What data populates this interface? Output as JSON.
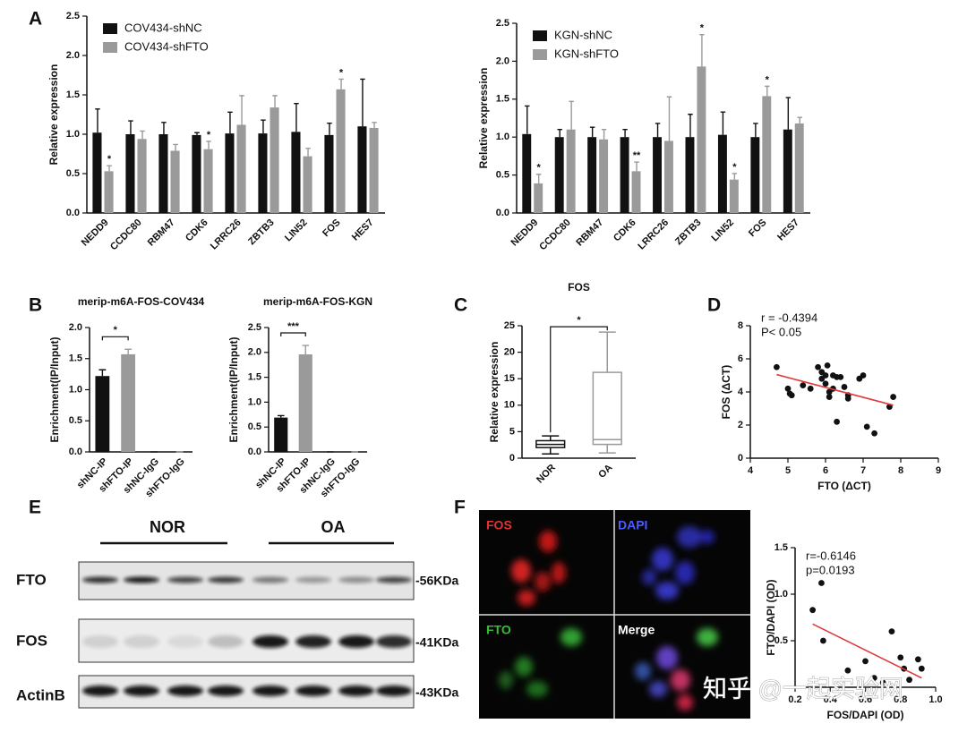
{
  "panels": [
    "A",
    "B",
    "C",
    "D",
    "E",
    "F"
  ],
  "blot": {
    "groups": [
      "NOR",
      "OA"
    ],
    "rows": [
      "FTO",
      "FOS",
      "ActinB"
    ],
    "sizes": [
      "-56KDa",
      "-41KDa",
      "-43KDa"
    ]
  },
  "microscopy": {
    "channels": [
      "FOS",
      "DAPI",
      "FTO",
      "Merge"
    ]
  },
  "watermark": "知乎 @一起实验网",
  "chart_data": [
    {
      "type": "bar",
      "y_label": "Relative expression",
      "categories": [
        "NEDD9",
        "CCDC80",
        "RBM47",
        "CDK6",
        "LRRC26",
        "ZBTB3",
        "LIN52",
        "FOS",
        "HES7"
      ],
      "series": [
        {
          "name": "COV434-shNC",
          "color": "#111111",
          "values": [
            1.02,
            1.0,
            1.0,
            0.99,
            1.01,
            1.01,
            1.03,
            0.99,
            1.1
          ],
          "errors": [
            0.3,
            0.17,
            0.15,
            0.03,
            0.27,
            0.17,
            0.36,
            0.15,
            0.6
          ]
        },
        {
          "name": "COV434-shFTO",
          "color": "#9a9a9a",
          "values": [
            0.53,
            0.94,
            0.79,
            0.81,
            1.12,
            1.34,
            0.72,
            1.57,
            1.08
          ],
          "errors": [
            0.07,
            0.1,
            0.08,
            0.1,
            0.37,
            0.15,
            0.1,
            0.13,
            0.07
          ],
          "labels": [
            "*",
            null,
            null,
            "*",
            null,
            null,
            null,
            "*",
            null
          ]
        }
      ],
      "ylim": [
        0,
        2.5
      ],
      "yticks": [
        {
          "value": 0,
          "label": "0.0"
        },
        0.5,
        {
          "value": 1,
          "label": "1.0"
        },
        1.5,
        {
          "value": 2,
          "label": "2.0"
        },
        2.5
      ],
      "legend": "top-left"
    },
    {
      "type": "bar",
      "y_label": "Relative expression",
      "categories": [
        "NEDD9",
        "CCDC80",
        "RBM47",
        "CDK6",
        "LRRC26",
        "ZBTB3",
        "LIN52",
        "FOS",
        "HES7"
      ],
      "series": [
        {
          "name": "KGN-shNC",
          "color": "#111111",
          "values": [
            1.04,
            1.0,
            1.0,
            1.0,
            1.0,
            1.0,
            1.03,
            1.0,
            1.1
          ],
          "errors": [
            0.37,
            0.1,
            0.13,
            0.1,
            0.18,
            0.3,
            0.3,
            0.18,
            0.42
          ]
        },
        {
          "name": "KGN-shFTO",
          "color": "#9a9a9a",
          "values": [
            0.39,
            1.1,
            0.97,
            0.55,
            0.95,
            1.93,
            0.44,
            1.54,
            1.18
          ],
          "errors": [
            0.12,
            0.37,
            0.13,
            0.12,
            0.58,
            0.42,
            0.08,
            0.13,
            0.08
          ],
          "labels": [
            "*",
            null,
            null,
            "**",
            null,
            "*",
            "*",
            "*",
            null
          ]
        }
      ],
      "ylim": [
        0,
        2.5
      ],
      "yticks": [
        {
          "value": 0,
          "label": "0.0"
        },
        0.5,
        {
          "value": 1,
          "label": "1.0"
        },
        1.5,
        {
          "value": 2,
          "label": "2.0"
        },
        2.5
      ],
      "legend": "top-left"
    },
    {
      "type": "bar",
      "title": "merip-m6A-FOS-COV434",
      "y_label": "Enrichment(IP/Input)",
      "categories": [
        "shNC-IP",
        "shFTO-IP",
        "shNC-IgG",
        "shFTO-IgG"
      ],
      "values": [
        1.22,
        1.57,
        0,
        0
      ],
      "errors": [
        0.1,
        0.08,
        0,
        0
      ],
      "colors": [
        "#111111",
        "#9a9a9a",
        "#111111",
        "#9a9a9a"
      ],
      "significance": "*",
      "ylim": [
        0,
        2
      ],
      "yticks": [
        {
          "value": 0,
          "label": "0.0"
        },
        0.5,
        {
          "value": 1,
          "label": "1.0"
        },
        1.5,
        {
          "value": 2,
          "label": "2.0"
        }
      ]
    },
    {
      "type": "bar",
      "title": "merip-m6A-FOS-KGN",
      "y_label": "Enrichment(IP/Input)",
      "categories": [
        "shNC-IP",
        "shFTO-IP",
        "shNC-IgG",
        "shFTO-IgG"
      ],
      "values": [
        0.69,
        1.96,
        0,
        0
      ],
      "errors": [
        0.04,
        0.18,
        0,
        0
      ],
      "colors": [
        "#111111",
        "#9a9a9a",
        "#111111",
        "#9a9a9a"
      ],
      "significance": "***",
      "ylim": [
        0,
        2.5
      ],
      "yticks": [
        {
          "value": 0,
          "label": "0.0"
        },
        0.5,
        {
          "value": 1,
          "label": "1.0"
        },
        1.5,
        {
          "value": 2,
          "label": "2.0"
        },
        2.5
      ]
    },
    {
      "type": "box",
      "title": "FOS",
      "y_label": "Relative expression",
      "categories": [
        "NOR",
        "OA"
      ],
      "colors": [
        "#111111",
        "#9a9a9a"
      ],
      "box": [
        {
          "min": 0.8,
          "q1": 2.0,
          "median": 2.6,
          "q3": 3.3,
          "max": 4.2
        },
        {
          "min": 1.0,
          "q1": 2.6,
          "median": 3.5,
          "q3": 16.2,
          "max": 23.8
        }
      ],
      "significance": "*",
      "ylim": [
        0,
        25
      ],
      "yticks": [
        0,
        5,
        10,
        15,
        20,
        25
      ]
    },
    {
      "type": "scatter",
      "x_label": "FTO (ΔCT)",
      "y_label": "FOS (ΔCT)",
      "annotations": [
        "r = -0.4394",
        "P< 0.05"
      ],
      "x": [
        4.7,
        5.0,
        5.05,
        5.1,
        5.4,
        5.6,
        5.8,
        5.9,
        5.9,
        6.0,
        6.0,
        6.05,
        6.1,
        6.1,
        6.2,
        6.2,
        6.3,
        6.3,
        6.4,
        6.5,
        6.6,
        6.6,
        6.9,
        7.0,
        7.1,
        7.3,
        7.7,
        7.8
      ],
      "y": [
        5.5,
        4.2,
        3.9,
        3.8,
        4.4,
        4.2,
        5.5,
        5.2,
        4.8,
        5.0,
        4.5,
        5.6,
        4.0,
        3.7,
        5.0,
        4.2,
        4.9,
        2.2,
        4.9,
        4.3,
        3.8,
        3.6,
        4.8,
        5.0,
        1.9,
        1.5,
        3.1,
        3.7
      ],
      "color": "#111111",
      "trendline": {
        "x": [
          4.7,
          7.8
        ],
        "y": [
          5.05,
          3.2
        ],
        "color": "#e03a3a"
      },
      "xlim": [
        4,
        9
      ],
      "xticks": [
        4,
        5,
        6,
        7,
        8,
        9
      ],
      "ylim": [
        0,
        8
      ],
      "yticks": [
        0,
        2,
        4,
        6,
        8
      ]
    },
    {
      "type": "scatter",
      "x_label": "FOS/DAPI (OD)",
      "y_label": "FTO/DAPI (OD)",
      "annotations": [
        "r=-0.6146",
        "p=0.0193"
      ],
      "x": [
        0.3,
        0.35,
        0.36,
        0.5,
        0.6,
        0.65,
        0.7,
        0.75,
        0.8,
        0.82,
        0.85,
        0.9,
        0.92
      ],
      "y": [
        0.83,
        1.12,
        0.5,
        0.18,
        0.28,
        0.1,
        0.05,
        0.6,
        0.32,
        0.2,
        0.08,
        0.3,
        0.2
      ],
      "color": "#111111",
      "trendline": {
        "x": [
          0.3,
          0.92
        ],
        "y": [
          0.68,
          0.1
        ],
        "color": "#e03a3a"
      },
      "xlim": [
        0.2,
        1
      ],
      "xticks": [
        0.2,
        0.4,
        0.6,
        0.8,
        {
          "value": 1,
          "label": "1.0"
        }
      ],
      "ylim": [
        0,
        1.5
      ],
      "yticks": [
        0.5,
        {
          "value": 1,
          "label": "1.0"
        },
        1.5
      ]
    }
  ]
}
